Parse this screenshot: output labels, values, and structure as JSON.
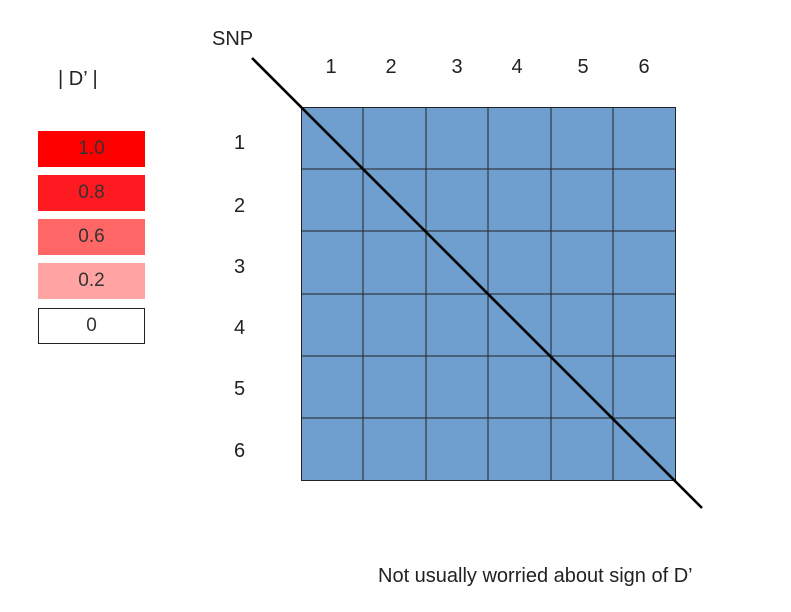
{
  "legend": {
    "title": "| D’ |",
    "items": [
      {
        "label": "1.0",
        "color": "#ff0000"
      },
      {
        "label": "0.8",
        "color": "#ff1a22"
      },
      {
        "label": "0.6",
        "color": "#ff6666"
      },
      {
        "label": "0.2",
        "color": "#ffa3a3"
      },
      {
        "label": "0",
        "color": "#ffffff"
      }
    ]
  },
  "matrix": {
    "axis_label": "SNP",
    "columns": [
      "1",
      "2",
      "3",
      "4",
      "5",
      "6"
    ],
    "rows": [
      "1",
      "2",
      "3",
      "4",
      "5",
      "6"
    ],
    "cell_color": "#6f9fce"
  },
  "footnote": "Not usually worried about sign of D’"
}
